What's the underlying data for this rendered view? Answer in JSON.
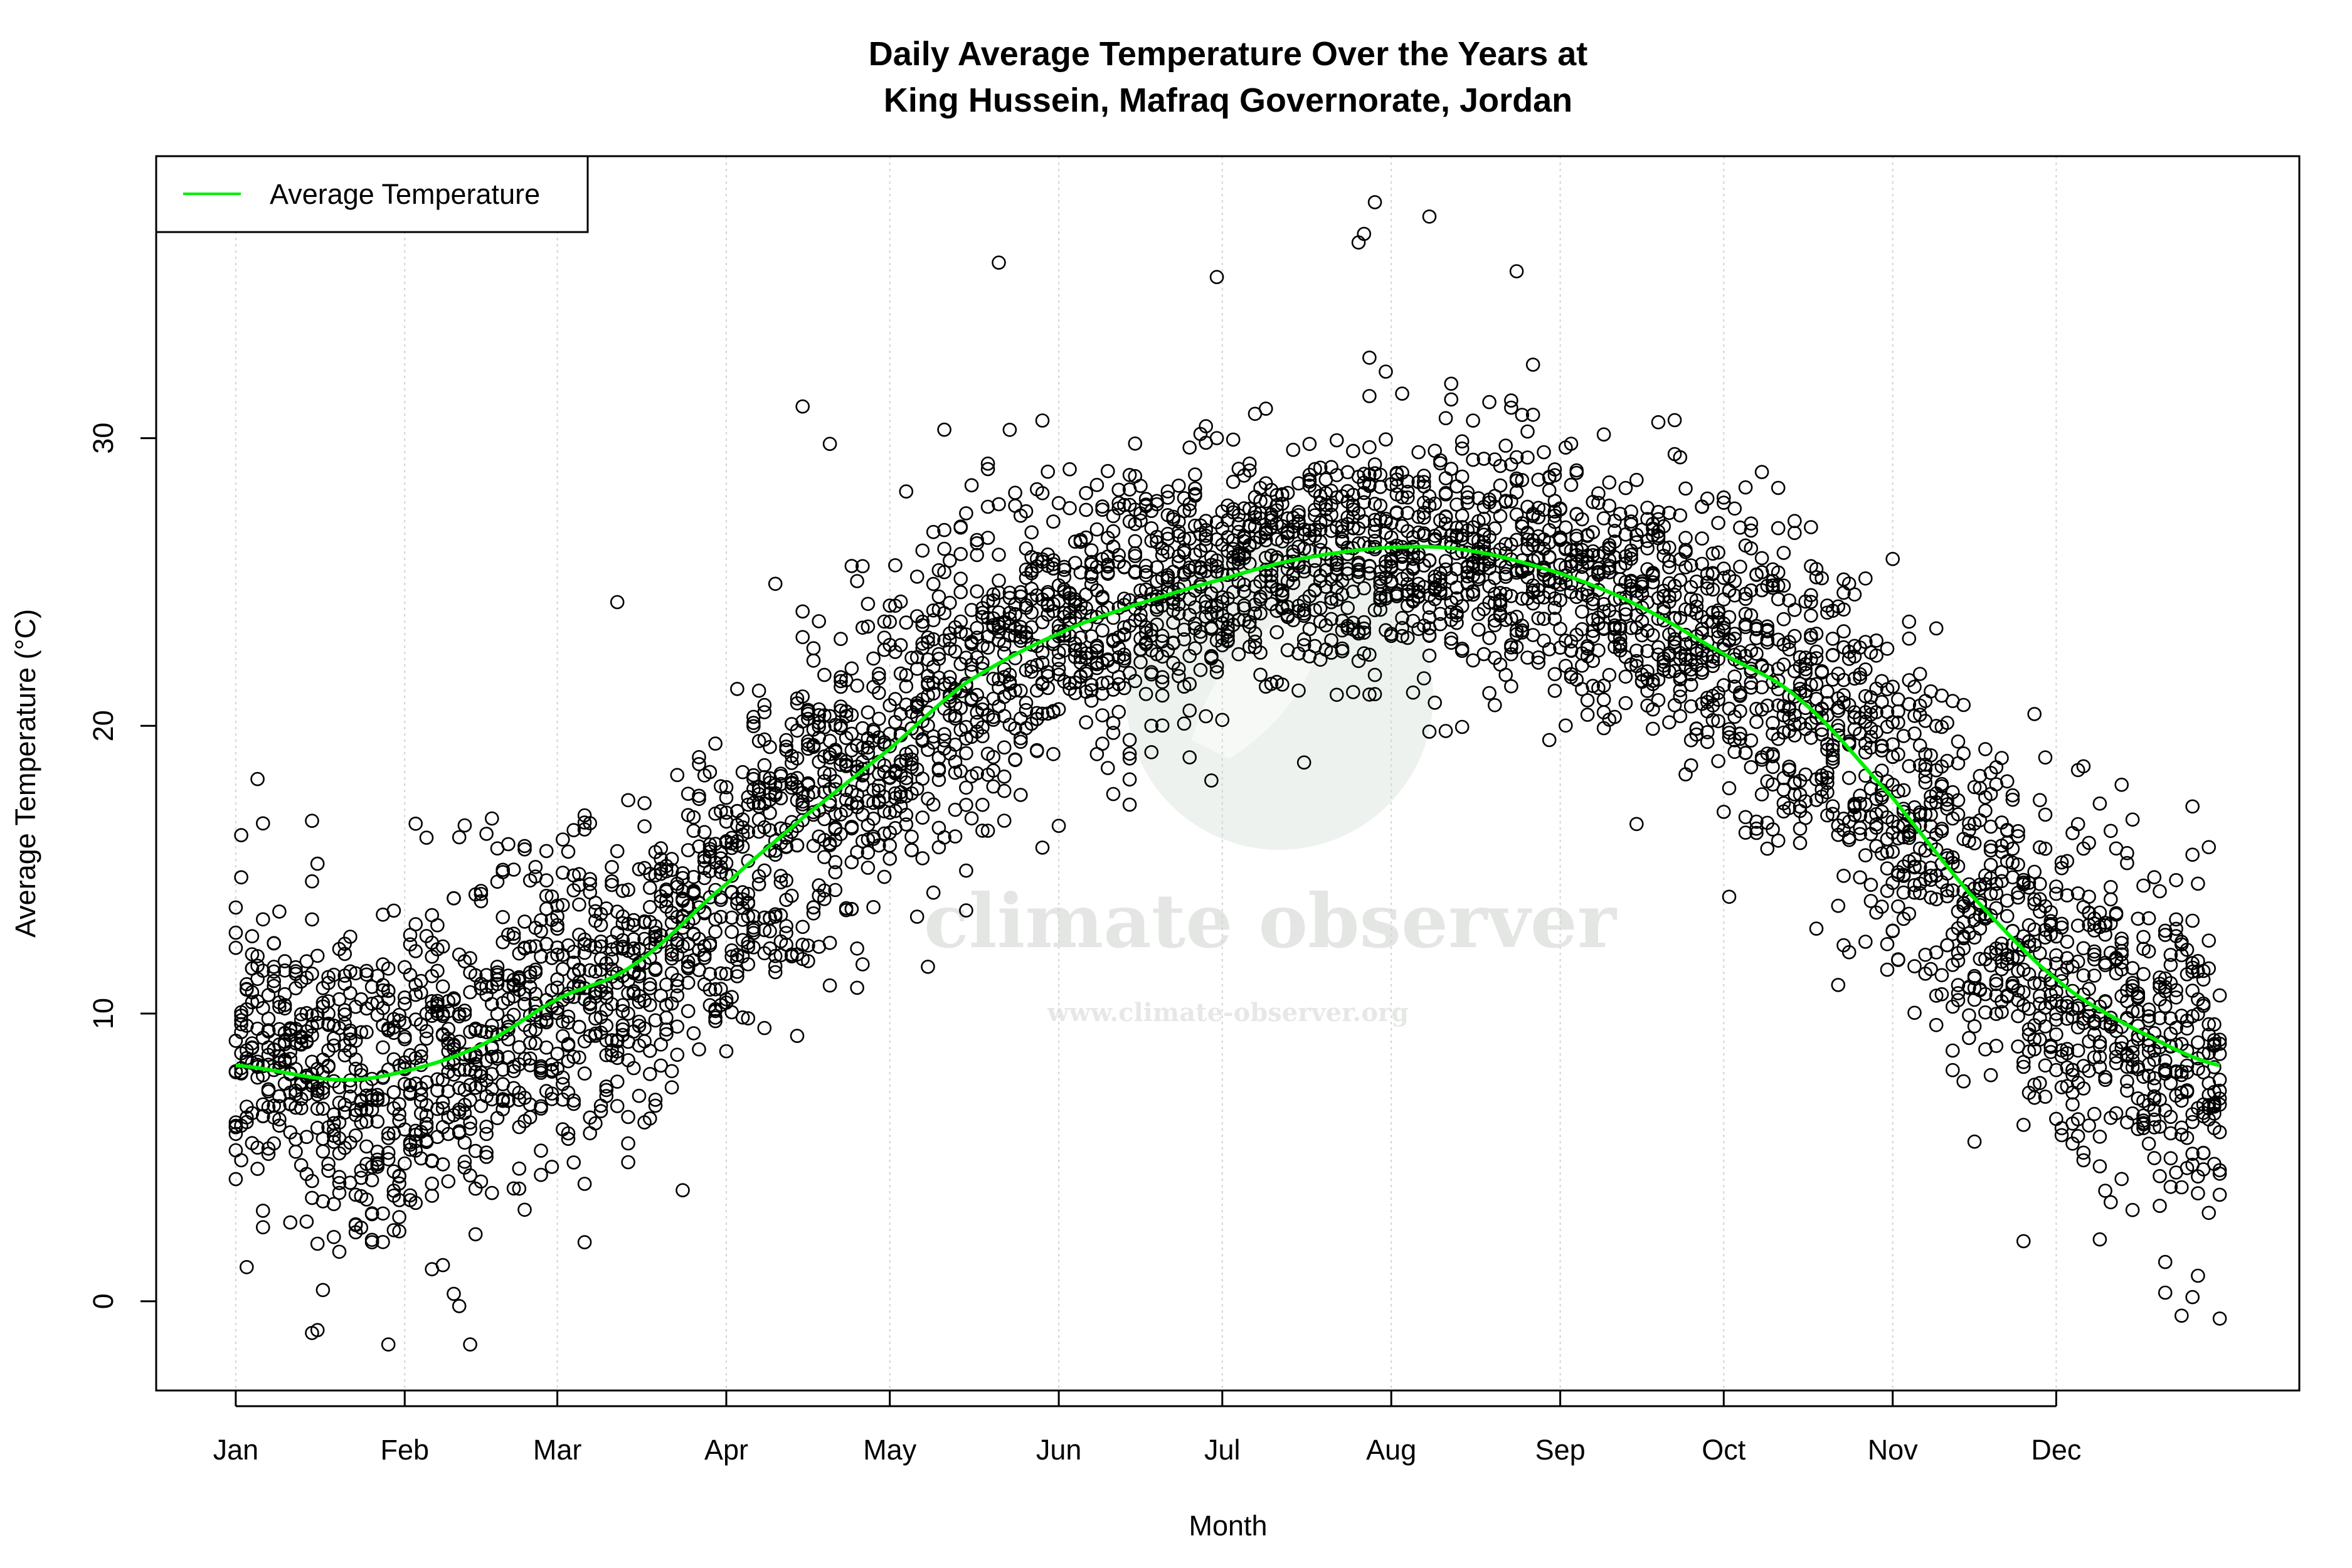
{
  "chart_data": {
    "type": "scatter",
    "title": "Daily Average Temperature Over the Years at",
    "subtitle": "King Hussein, Mafraq Governorate, Jordan",
    "xlabel": "Month",
    "ylabel": "Average Temperature (°C)",
    "x_unit": "day of year",
    "xlim": [
      -13.6,
      379.6
    ],
    "ylim": [
      -3.1,
      39.8
    ],
    "x_ticks": [
      {
        "day": 1,
        "label": "Jan"
      },
      {
        "day": 32,
        "label": "Feb"
      },
      {
        "day": 60,
        "label": "Mar"
      },
      {
        "day": 91,
        "label": "Apr"
      },
      {
        "day": 121,
        "label": "May"
      },
      {
        "day": 152,
        "label": "Jun"
      },
      {
        "day": 182,
        "label": "Jul"
      },
      {
        "day": 213,
        "label": "Aug"
      },
      {
        "day": 244,
        "label": "Sep"
      },
      {
        "day": 274,
        "label": "Oct"
      },
      {
        "day": 305,
        "label": "Nov"
      },
      {
        "day": 335,
        "label": "Dec"
      }
    ],
    "y_ticks": [
      0,
      10,
      20,
      30
    ],
    "grid": "vertical dotted at month ticks",
    "legend": {
      "position": "top-left",
      "entries": [
        {
          "label": "Average Temperature",
          "color": "#00ee00"
        }
      ]
    },
    "series": [
      {
        "name": "Average Temperature",
        "kind": "smoothed line",
        "color": "#00ee00",
        "points": [
          [
            1,
            8.2
          ],
          [
            20,
            7.7
          ],
          [
            32,
            8.0
          ],
          [
            46,
            8.9
          ],
          [
            60,
            10.5
          ],
          [
            74,
            11.7
          ],
          [
            91,
            14.5
          ],
          [
            105,
            16.8
          ],
          [
            121,
            19.2
          ],
          [
            135,
            21.5
          ],
          [
            152,
            23.2
          ],
          [
            166,
            24.2
          ],
          [
            182,
            25.1
          ],
          [
            196,
            25.8
          ],
          [
            213,
            26.2
          ],
          [
            227,
            26.1
          ],
          [
            244,
            25.3
          ],
          [
            258,
            24.2
          ],
          [
            274,
            22.5
          ],
          [
            288,
            20.9
          ],
          [
            305,
            17.5
          ],
          [
            319,
            14.2
          ],
          [
            335,
            11.2
          ],
          [
            349,
            9.5
          ],
          [
            365,
            8.2
          ]
        ]
      },
      {
        "kind": "daily observations (open circles)",
        "color": "#000000",
        "notable_points": [
          [
            44,
            -1.5
          ],
          [
            15,
            -1.1
          ],
          [
            16,
            -1.0
          ],
          [
            358,
            -0.5
          ],
          [
            365,
            -0.6
          ],
          [
            355,
            0.3
          ],
          [
            210,
            38.2
          ],
          [
            220,
            37.7
          ],
          [
            208,
            37.1
          ],
          [
            207,
            36.8
          ],
          [
            181,
            35.6
          ],
          [
            141,
            36.1
          ],
          [
            236,
            35.8
          ],
          [
            71,
            24.3
          ],
          [
            105,
            31.1
          ],
          [
            110,
            29.8
          ],
          [
            312,
            21.2
          ],
          [
            305,
            25.8
          ],
          [
            2,
            16.2
          ],
          [
            15,
            16.7
          ],
          [
            34,
            16.6
          ],
          [
            360,
            17.2
          ]
        ]
      }
    ]
  },
  "watermark": {
    "name": "climate observer",
    "url": "www.climate-observer.org",
    "logo_color": "#edf2ee"
  },
  "colors": {
    "points": "#000000",
    "line": "#00ee00",
    "grid": "#d3d3d3",
    "frame": "#000000"
  }
}
